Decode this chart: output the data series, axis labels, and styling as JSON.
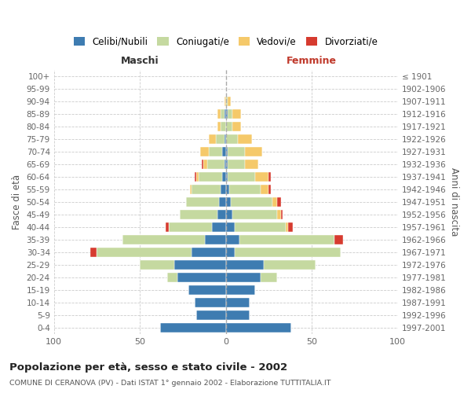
{
  "age_groups": [
    "100+",
    "95-99",
    "90-94",
    "85-89",
    "80-84",
    "75-79",
    "70-74",
    "65-69",
    "60-64",
    "55-59",
    "50-54",
    "45-49",
    "40-44",
    "35-39",
    "30-34",
    "25-29",
    "20-24",
    "15-19",
    "10-14",
    "5-9",
    "0-4"
  ],
  "birth_years": [
    "≤ 1901",
    "1902-1906",
    "1907-1911",
    "1912-1916",
    "1917-1921",
    "1922-1926",
    "1927-1931",
    "1932-1936",
    "1937-1941",
    "1942-1946",
    "1947-1951",
    "1952-1956",
    "1957-1961",
    "1962-1966",
    "1967-1971",
    "1972-1976",
    "1977-1981",
    "1982-1986",
    "1987-1991",
    "1992-1996",
    "1997-2001"
  ],
  "colors": {
    "celibe": "#3e7cb1",
    "coniugato": "#c5d9a0",
    "vedovo": "#f5c96a",
    "divorziato": "#d63b2f"
  },
  "maschi": {
    "celibe": [
      0,
      0,
      0,
      1,
      0,
      1,
      2,
      1,
      2,
      3,
      4,
      5,
      8,
      12,
      20,
      30,
      28,
      22,
      18,
      17,
      38
    ],
    "coniugato": [
      0,
      0,
      0,
      2,
      3,
      5,
      8,
      10,
      14,
      17,
      19,
      22,
      25,
      48,
      55,
      20,
      6,
      0,
      0,
      0,
      0
    ],
    "vedovo": [
      0,
      0,
      1,
      2,
      2,
      4,
      5,
      2,
      1,
      1,
      0,
      0,
      0,
      0,
      0,
      0,
      0,
      0,
      0,
      0,
      0
    ],
    "divorziato": [
      0,
      0,
      0,
      0,
      0,
      0,
      0,
      1,
      1,
      0,
      0,
      0,
      2,
      0,
      4,
      0,
      0,
      0,
      0,
      0,
      0
    ]
  },
  "femmine": {
    "nubile": [
      0,
      0,
      0,
      1,
      0,
      0,
      1,
      1,
      1,
      2,
      3,
      4,
      5,
      8,
      5,
      22,
      20,
      17,
      14,
      14,
      38
    ],
    "coniugata": [
      0,
      0,
      1,
      3,
      4,
      7,
      10,
      10,
      16,
      18,
      24,
      26,
      30,
      55,
      62,
      30,
      10,
      0,
      0,
      0,
      0
    ],
    "vedova": [
      0,
      0,
      2,
      5,
      5,
      8,
      10,
      8,
      8,
      5,
      3,
      2,
      1,
      0,
      0,
      0,
      0,
      0,
      0,
      0,
      0
    ],
    "divorziata": [
      0,
      0,
      0,
      0,
      0,
      0,
      0,
      0,
      1,
      1,
      2,
      1,
      3,
      5,
      0,
      0,
      0,
      0,
      0,
      0,
      0
    ]
  },
  "title": "Popolazione per età, sesso e stato civile - 2002",
  "subtitle": "COMUNE DI CERANOVA (PV) - Dati ISTAT 1° gennaio 2002 - Elaborazione TUTTITALIA.IT",
  "xlabel_maschi": "Maschi",
  "xlabel_femmine": "Femmine",
  "ylabel": "Fasce di età",
  "ylabel2": "Anni di nascita",
  "xlim": 100,
  "legend_labels": [
    "Celibi/Nubili",
    "Coniugati/e",
    "Vedovi/e",
    "Divorziati/e"
  ],
  "bg_color": "#ffffff",
  "grid_color": "#cccccc"
}
